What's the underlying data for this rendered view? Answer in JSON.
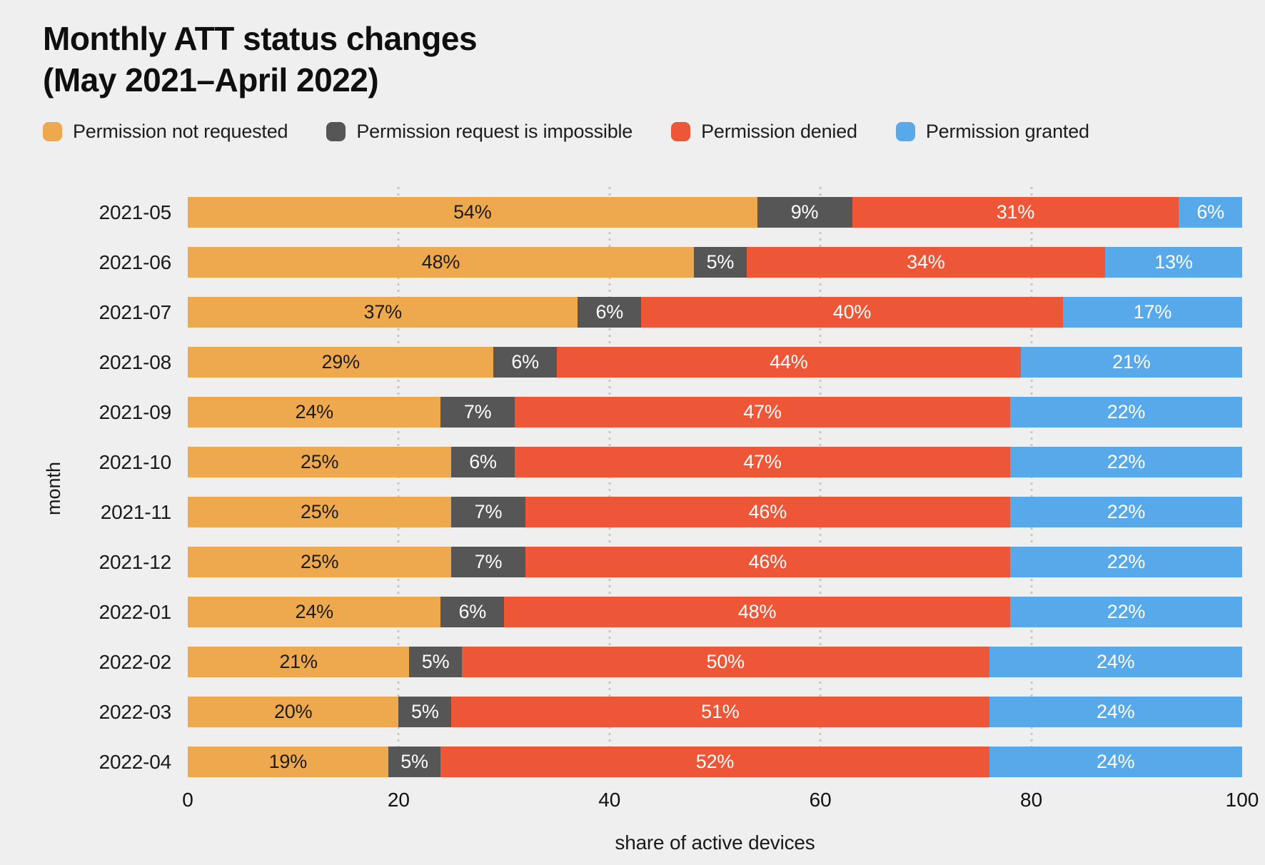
{
  "title": {
    "line1": "Monthly ATT status changes",
    "line2": "(May 2021–April 2022)"
  },
  "colors": {
    "background": "#efefef",
    "grid": "#c7c7c7",
    "not_requested": "#eea84e",
    "impossible": "#565656",
    "denied": "#ed5637",
    "granted": "#58a9e9"
  },
  "chart_data": {
    "type": "bar",
    "orientation": "horizontal",
    "stacked": true,
    "title": "Monthly ATT status changes (May 2021–April 2022)",
    "xlabel": "share of active devices",
    "ylabel": "month",
    "xlim": [
      0,
      100
    ],
    "x_ticks": [
      0,
      20,
      40,
      60,
      80,
      100
    ],
    "gridlines": [
      20,
      40,
      60,
      80
    ],
    "legend_position": "top",
    "value_suffix": "%",
    "categories": [
      "2021-05",
      "2021-06",
      "2021-07",
      "2021-08",
      "2021-09",
      "2021-10",
      "2021-11",
      "2021-12",
      "2022-01",
      "2022-02",
      "2022-03",
      "2022-04"
    ],
    "series": [
      {
        "name": "Permission not requested",
        "color": "#eea84e",
        "label_color": "#1c1c1c",
        "values": [
          54,
          48,
          37,
          29,
          24,
          25,
          25,
          25,
          24,
          21,
          20,
          19
        ]
      },
      {
        "name": "Permission request is impossible",
        "color": "#565656",
        "label_color": "#ffffff",
        "values": [
          9,
          5,
          6,
          6,
          7,
          6,
          7,
          7,
          6,
          5,
          5,
          5
        ]
      },
      {
        "name": "Permission denied",
        "color": "#ed5637",
        "label_color": "#ffffff",
        "values": [
          31,
          34,
          40,
          44,
          47,
          47,
          46,
          46,
          48,
          50,
          51,
          52
        ]
      },
      {
        "name": "Permission granted",
        "color": "#58a9e9",
        "label_color": "#ffffff",
        "values": [
          6,
          13,
          17,
          21,
          22,
          22,
          22,
          22,
          22,
          24,
          24,
          24
        ]
      }
    ]
  }
}
